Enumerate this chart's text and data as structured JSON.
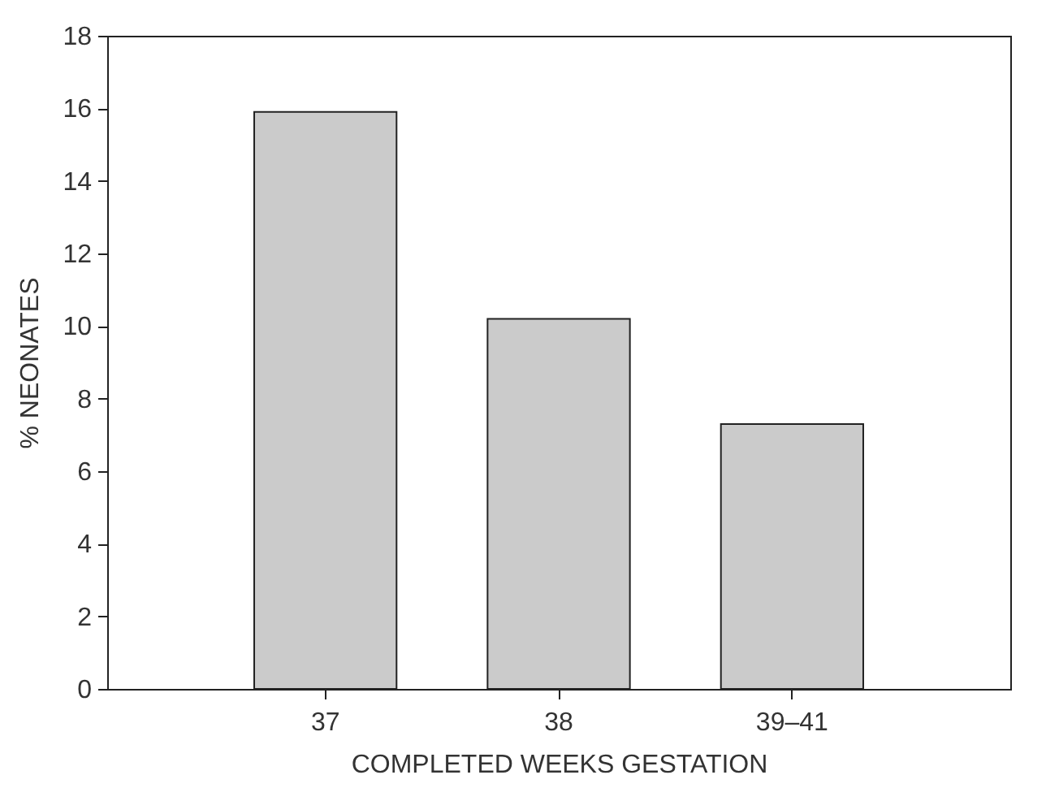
{
  "chart_data": {
    "type": "bar",
    "xlabel": "COMPLETED WEEKS GESTATION",
    "ylabel": "% NEONATES",
    "categories": [
      "37",
      "38",
      "39–41"
    ],
    "values": [
      15.9,
      10.2,
      7.3
    ],
    "color": "#cbcbcb",
    "ylim": [
      0,
      18
    ],
    "yticks": [
      0,
      2,
      4,
      6,
      8,
      10,
      12,
      14,
      16,
      18
    ],
    "grid": false
  }
}
